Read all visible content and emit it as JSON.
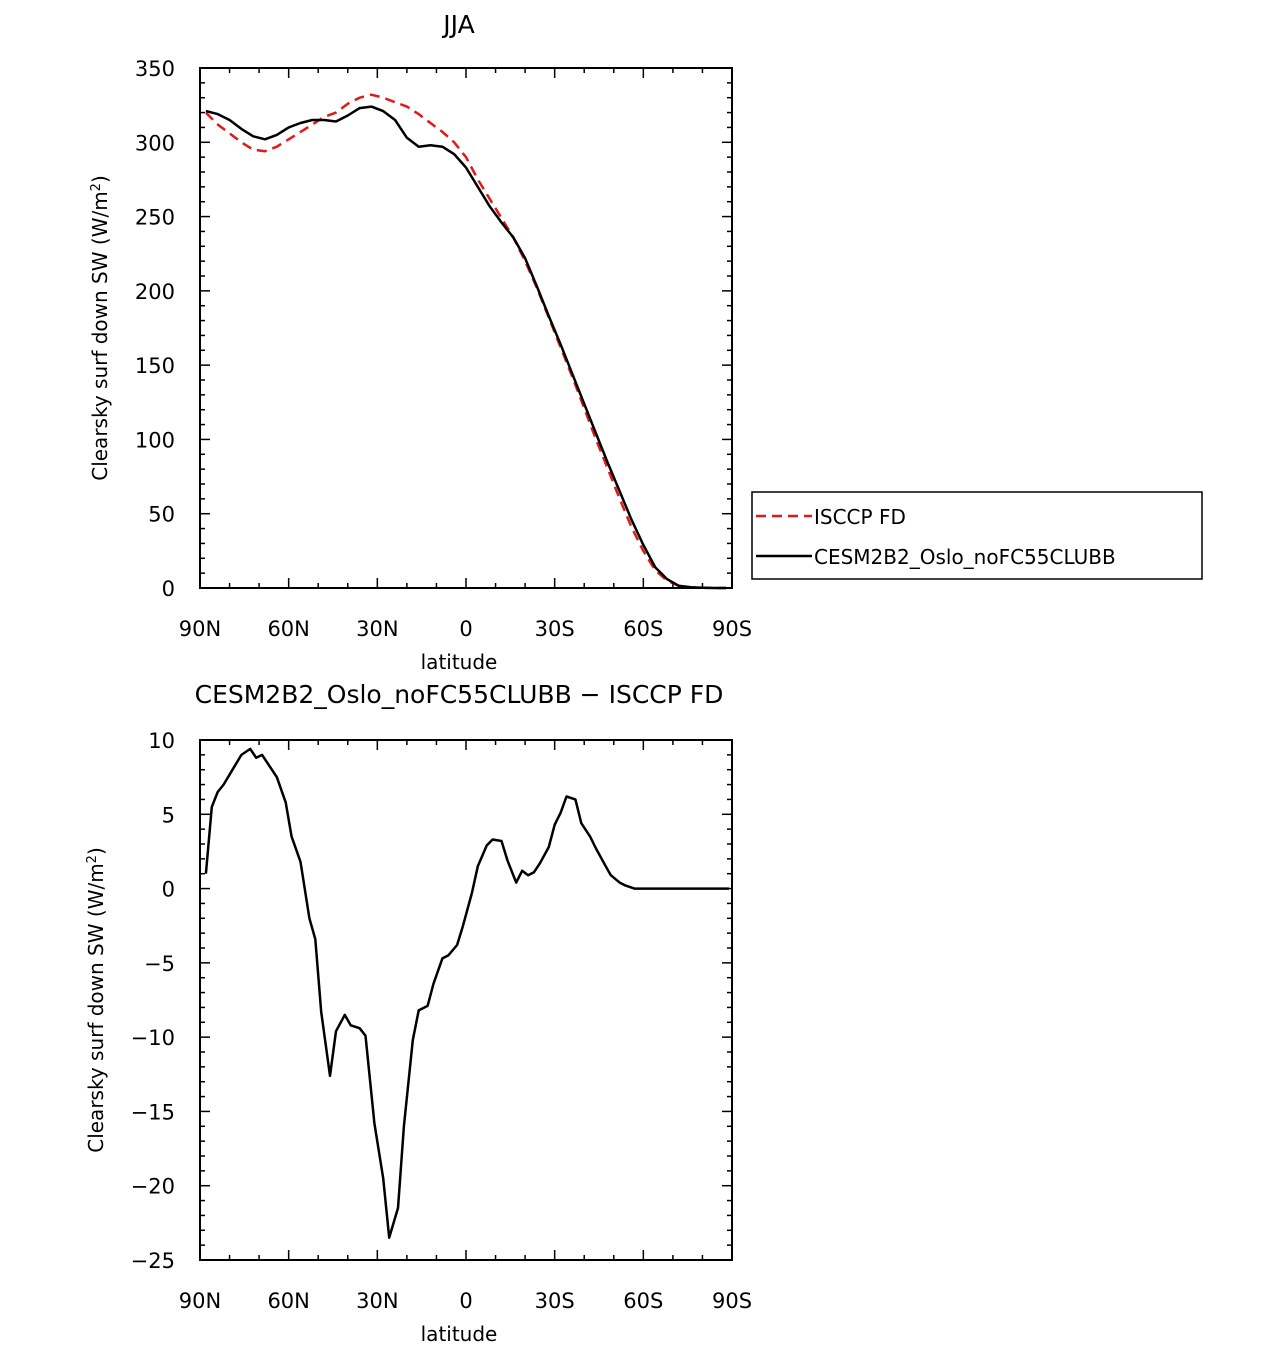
{
  "chart_data": [
    {
      "type": "line",
      "title": "JJA",
      "xlabel": "latitude",
      "ylabel": "Clearsky surf down SW (W/m²)",
      "ylabel_parts": {
        "main": "Clearsky surf down SW (W/m",
        "sup": "2",
        "close": ")"
      },
      "xlim": [
        90,
        -90
      ],
      "ylim": [
        0,
        350
      ],
      "xticks": [
        {
          "value": 90,
          "label": "90N"
        },
        {
          "value": 60,
          "label": "60N"
        },
        {
          "value": 30,
          "label": "30N"
        },
        {
          "value": 0,
          "label": "0"
        },
        {
          "value": -30,
          "label": "30S"
        },
        {
          "value": -60,
          "label": "60S"
        },
        {
          "value": -90,
          "label": "90S"
        }
      ],
      "yticks": [
        {
          "value": 0,
          "label": "0"
        },
        {
          "value": 50,
          "label": "50"
        },
        {
          "value": 100,
          "label": "100"
        },
        {
          "value": 150,
          "label": "150"
        },
        {
          "value": 200,
          "label": "200"
        },
        {
          "value": 250,
          "label": "250"
        },
        {
          "value": 300,
          "label": "300"
        },
        {
          "value": 350,
          "label": "350"
        }
      ],
      "legend_position": "right",
      "series": [
        {
          "name": "ISCCP FD",
          "color": "#e0191a",
          "style": "dashed",
          "x": [
            88,
            84,
            80,
            76,
            72,
            68,
            64,
            60,
            56,
            52,
            48,
            44,
            40,
            36,
            32,
            28,
            24,
            20,
            16,
            12,
            8,
            4,
            0,
            -4,
            -8,
            -12,
            -16,
            -20,
            -24,
            -28,
            -32,
            -36,
            -40,
            -44,
            -48,
            -52,
            -56,
            -60,
            -64,
            -68,
            -72,
            -76,
            -80,
            -84,
            -88
          ],
          "values": [
            320,
            312,
            306,
            300,
            295,
            294,
            297,
            302,
            307,
            312,
            317,
            320,
            326,
            330,
            332,
            330,
            327,
            324,
            319,
            313,
            307,
            300,
            290,
            275,
            262,
            249,
            236,
            220,
            202,
            182,
            162,
            142,
            121,
            100,
            80,
            60,
            41,
            25,
            12,
            5,
            1.5,
            0.5,
            0.2,
            0,
            0
          ]
        },
        {
          "name": "CESM2B2_Oslo_noFC55CLUBB",
          "color": "#000000",
          "style": "solid",
          "x": [
            88,
            84,
            80,
            76,
            72,
            68,
            64,
            60,
            56,
            52,
            48,
            44,
            40,
            36,
            32,
            28,
            24,
            20,
            16,
            12,
            8,
            4,
            0,
            -4,
            -8,
            -12,
            -16,
            -20,
            -24,
            -28,
            -32,
            -36,
            -40,
            -44,
            -48,
            -52,
            -56,
            -60,
            -64,
            -68,
            -72,
            -76,
            -80,
            -84,
            -88
          ],
          "values": [
            321,
            319,
            315,
            309,
            304,
            302,
            305,
            310,
            313,
            315,
            315,
            314,
            318,
            323,
            324,
            321,
            315,
            303,
            297,
            298,
            297,
            292,
            283,
            270,
            257,
            246,
            236,
            222,
            203,
            183,
            164,
            144,
            124,
            104,
            84,
            65,
            46,
            29,
            14,
            6,
            1.5,
            0.5,
            0.2,
            0,
            0
          ]
        }
      ]
    },
    {
      "type": "line",
      "title": "CESM2B2_Oslo_noFC55CLUBB − ISCCP FD",
      "xlabel": "latitude",
      "ylabel": "Clearsky surf down SW (W/m²)",
      "ylabel_parts": {
        "main": "Clearsky surf down SW (W/m",
        "sup": "2",
        "close": ")"
      },
      "xlim": [
        90,
        -90
      ],
      "ylim": [
        -25,
        10
      ],
      "xticks": [
        {
          "value": 90,
          "label": "90N"
        },
        {
          "value": 60,
          "label": "60N"
        },
        {
          "value": 30,
          "label": "30N"
        },
        {
          "value": 0,
          "label": "0"
        },
        {
          "value": -30,
          "label": "30S"
        },
        {
          "value": -60,
          "label": "60S"
        },
        {
          "value": -90,
          "label": "90S"
        }
      ],
      "yticks": [
        {
          "value": -25,
          "label": "−25"
        },
        {
          "value": -20,
          "label": "−20"
        },
        {
          "value": -15,
          "label": "−15"
        },
        {
          "value": -10,
          "label": "−10"
        },
        {
          "value": -5,
          "label": "−5"
        },
        {
          "value": 0,
          "label": "0"
        },
        {
          "value": 5,
          "label": "5"
        },
        {
          "value": 10,
          "label": "10"
        }
      ],
      "series": [
        {
          "name": "",
          "color": "#000000",
          "style": "solid",
          "x": [
            88,
            86,
            84,
            82,
            79,
            76,
            73,
            71,
            69,
            67,
            64,
            61,
            59,
            56,
            53,
            51,
            49,
            46,
            44,
            41,
            39,
            36,
            34,
            31,
            28,
            26,
            23,
            21,
            18,
            16,
            13,
            11,
            8,
            6,
            3,
            1,
            -2,
            -4,
            -7,
            -9,
            -12,
            -14,
            -17,
            -19,
            -21,
            -23,
            -25,
            -28,
            -30,
            -32,
            -34,
            -37,
            -39,
            -42,
            -44,
            -47,
            -49,
            -52,
            -54,
            -57,
            -59,
            -62,
            -64,
            -67,
            -69,
            -72,
            -74,
            -77,
            -79,
            -82,
            -84,
            -87,
            -89
          ],
          "values": [
            1.0,
            5.5,
            6.5,
            7.0,
            8.0,
            9.0,
            9.4,
            8.8,
            9.0,
            8.4,
            7.5,
            5.8,
            3.5,
            1.8,
            -2.0,
            -3.4,
            -8.3,
            -12.6,
            -9.6,
            -8.5,
            -9.2,
            -9.4,
            -9.9,
            -15.8,
            -19.5,
            -23.5,
            -21.5,
            -16.0,
            -10.2,
            -8.2,
            -7.9,
            -6.4,
            -4.7,
            -4.5,
            -3.8,
            -2.5,
            -0.3,
            1.5,
            2.9,
            3.3,
            3.2,
            1.9,
            0.4,
            1.2,
            0.9,
            1.1,
            1.7,
            2.8,
            4.3,
            5.1,
            6.2,
            6.0,
            4.4,
            3.5,
            2.7,
            1.6,
            0.9,
            0.4,
            0.2,
            0.0,
            0.0,
            0.0,
            0.0,
            0.0,
            0.0,
            0.0,
            0.0,
            0.0,
            0.0,
            0.0,
            0.0,
            0.0,
            0.0
          ]
        }
      ]
    }
  ]
}
